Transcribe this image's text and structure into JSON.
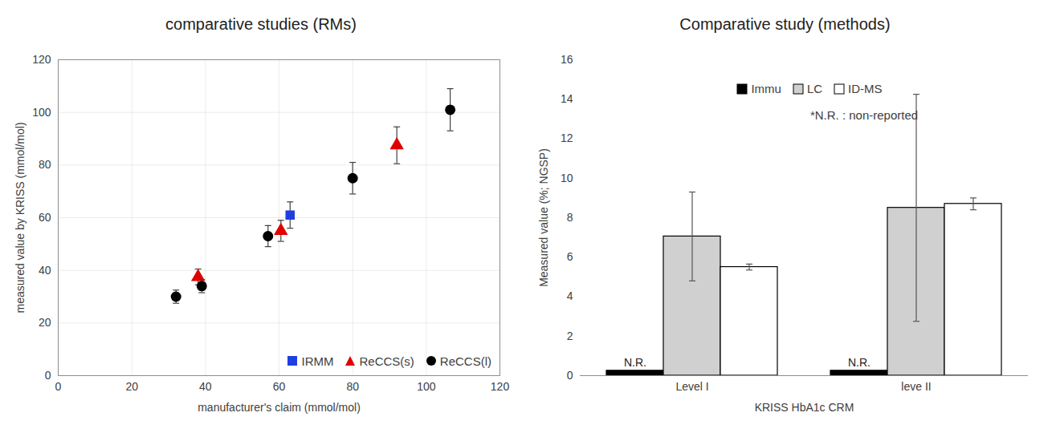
{
  "chart_data": [
    {
      "type": "scatter",
      "title": "comparative studies (RMs)",
      "x_label": "manufacturer's claim (mmol/mol)",
      "y_label": "measured value by KRISS (mmol/mol)",
      "xlim": [
        0,
        120
      ],
      "xticks": [
        0,
        20,
        40,
        60,
        80,
        100,
        120
      ],
      "ylim": [
        0,
        120
      ],
      "yticks": [
        0,
        20,
        40,
        60,
        80,
        100,
        120
      ],
      "grid": true,
      "legend": "lower right",
      "series": [
        {
          "name": "IRMM",
          "color": "#1f3fe0",
          "marker": "square",
          "x": [
            63
          ],
          "values": [
            61
          ],
          "errors": [
            5
          ]
        },
        {
          "name": "ReCCS(s)",
          "color": "#e00000",
          "marker": "triangle",
          "x": [
            38,
            60.5,
            92
          ],
          "values": [
            37.5,
            55,
            87.5
          ],
          "errors": [
            3,
            4,
            7
          ]
        },
        {
          "name": "ReCCS(l)",
          "color": "#000000",
          "marker": "circle",
          "x": [
            32,
            39,
            57,
            80,
            106.5
          ],
          "values": [
            30,
            34,
            53,
            75,
            101
          ],
          "errors": [
            2.5,
            2.5,
            4,
            6,
            8
          ]
        }
      ]
    },
    {
      "type": "bar",
      "title": "Comparative study (methods)",
      "x_label": "KRISS HbA1c CRM",
      "y_label": "Measured value (%; NGSP)",
      "categories": [
        "Level I",
        "leve II"
      ],
      "ylim": [
        0,
        16
      ],
      "yticks": [
        0,
        2,
        4,
        6,
        8,
        10,
        12,
        14,
        16
      ],
      "grid": false,
      "legend": "upper center",
      "annotations": [
        "*N.R. : non-reported"
      ],
      "series": [
        {
          "name": "Immu",
          "color": "#000000",
          "values": [
            0.25,
            0.25
          ],
          "value_labels": [
            "N.R.",
            "N.R."
          ],
          "data_labels": true
        },
        {
          "name": "LC",
          "color": "#d0d0d0",
          "values": [
            7.05,
            8.5
          ],
          "errors": [
            2.25,
            5.75
          ]
        },
        {
          "name": "ID-MS",
          "color": "#ffffff",
          "values": [
            5.5,
            8.7
          ],
          "errors": [
            0.15,
            0.3
          ]
        }
      ]
    }
  ]
}
